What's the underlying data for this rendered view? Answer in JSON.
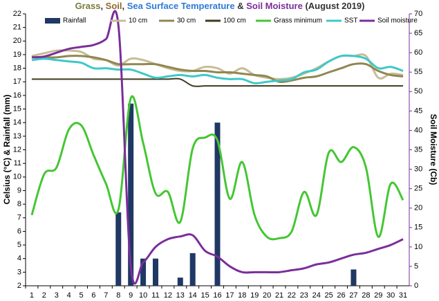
{
  "chart_data": {
    "type": "combo",
    "title_parts": [
      {
        "text": "Grass",
        "color": "#7a7a3a"
      },
      {
        "text": ", ",
        "color": "#333333"
      },
      {
        "text": "Soil",
        "color": "#8f6a28"
      },
      {
        "text": ", ",
        "color": "#333333"
      },
      {
        "text": "Sea Surface Temperature",
        "color": "#2e7bd6"
      },
      {
        "text": " & ",
        "color": "#333333"
      },
      {
        "text": "Soil Moisture",
        "color": "#7a2e9a"
      },
      {
        "text": " (August 2019)",
        "color": "#333333"
      }
    ],
    "y_label": "Celsius (°C) & Rainfall (mm)",
    "y2_label": "Soil Moisture (Cb)",
    "y2_color": "#7a2e9a",
    "categories": [
      "1",
      "2",
      "3",
      "4",
      "5",
      "6",
      "7",
      "8",
      "9",
      "10",
      "11",
      "12",
      "13",
      "14",
      "15",
      "16",
      "17",
      "18",
      "19",
      "20",
      "21",
      "22",
      "23",
      "24",
      "25",
      "26",
      "27",
      "28",
      "29",
      "30",
      "31"
    ],
    "ylim": [
      2,
      22
    ],
    "yticks": [
      2,
      3,
      4,
      5,
      6,
      7,
      8,
      9,
      10,
      11,
      12,
      13,
      14,
      15,
      16,
      17,
      18,
      19,
      20,
      21,
      22
    ],
    "y2lim": [
      0,
      70
    ],
    "y2ticks": [
      0,
      5,
      10,
      15,
      20,
      25,
      30,
      35,
      40,
      45,
      50,
      55,
      60,
      65,
      70
    ],
    "series": [
      {
        "name": "Rainfall",
        "kind": "bar",
        "color": "#1f3864",
        "values": [
          0,
          0,
          0,
          0,
          0,
          0,
          0,
          7.4,
          15.4,
          4.0,
          4.0,
          0,
          2.6,
          4.4,
          0,
          14.0,
          0,
          0,
          0,
          0,
          0,
          0,
          0,
          0,
          0,
          0,
          3.2,
          0,
          0,
          0,
          0
        ]
      },
      {
        "name": "10 cm",
        "kind": "line",
        "color": "#c8bc96",
        "values": [
          18.9,
          19.1,
          19.3,
          19.3,
          19.2,
          18.7,
          18.6,
          18.2,
          18.7,
          18.6,
          18.3,
          18.0,
          17.8,
          17.8,
          18.1,
          18.0,
          17.6,
          18.0,
          17.5,
          17.3,
          17.2,
          17.3,
          17.6,
          18.0,
          18.5,
          18.9,
          18.9,
          18.9,
          17.3,
          17.6,
          17.5
        ]
      },
      {
        "name": "30 cm",
        "kind": "line",
        "color": "#8f8750",
        "values": [
          18.8,
          18.8,
          18.8,
          18.9,
          18.9,
          18.8,
          18.6,
          18.3,
          18.3,
          18.3,
          18.3,
          18.1,
          17.9,
          17.8,
          17.8,
          17.7,
          17.7,
          17.6,
          17.5,
          17.4,
          17.0,
          17.1,
          17.3,
          17.4,
          17.7,
          18.0,
          18.3,
          18.3,
          17.8,
          17.5,
          17.4
        ]
      },
      {
        "name": "100 cm",
        "kind": "line",
        "color": "#3f3a1e",
        "values": [
          17.2,
          17.2,
          17.2,
          17.2,
          17.2,
          17.2,
          17.2,
          17.2,
          17.2,
          17.2,
          17.2,
          17.2,
          17.2,
          16.7,
          16.7,
          16.7,
          16.7,
          16.7,
          16.7,
          16.7,
          16.7,
          16.7,
          16.7,
          16.7,
          16.7,
          16.7,
          16.7,
          16.7,
          16.7,
          16.7,
          16.7
        ]
      },
      {
        "name": "Grass minimum",
        "kind": "line",
        "color": "#44c633",
        "values": [
          7.2,
          10.2,
          10.7,
          13.5,
          13.8,
          11.6,
          9.5,
          7.6,
          15.8,
          12.5,
          8.8,
          8.9,
          6.7,
          12.1,
          12.9,
          12.7,
          8.4,
          11.1,
          7.2,
          5.6,
          5.5,
          6.0,
          8.9,
          7.2,
          11.8,
          11.1,
          12.2,
          10.7,
          5.6,
          9.5,
          8.3
        ]
      },
      {
        "name": "SST",
        "kind": "line",
        "color": "#3ec8c8",
        "values": [
          18.6,
          18.7,
          18.6,
          18.5,
          18.4,
          18.0,
          18.0,
          17.9,
          17.9,
          17.6,
          17.3,
          17.4,
          17.5,
          17.4,
          17.5,
          17.3,
          17.2,
          17.2,
          16.9,
          17.0,
          17.1,
          17.2,
          17.7,
          17.9,
          18.5,
          18.9,
          18.9,
          18.7,
          18.0,
          18.1,
          17.8
        ]
      },
      {
        "name": "Soil moisture",
        "kind": "line",
        "axis": "y2",
        "color": "#7a2e9a",
        "values": [
          58.8,
          59,
          60,
          61,
          61.5,
          62,
          63.5,
          67,
          5,
          6,
          10,
          12,
          12.7,
          13,
          9,
          7.5,
          5,
          3.5,
          3.5,
          3.5,
          3.5,
          4,
          4.5,
          5.5,
          6,
          7,
          8,
          8.5,
          9.5,
          10.5,
          12
        ]
      }
    ]
  }
}
